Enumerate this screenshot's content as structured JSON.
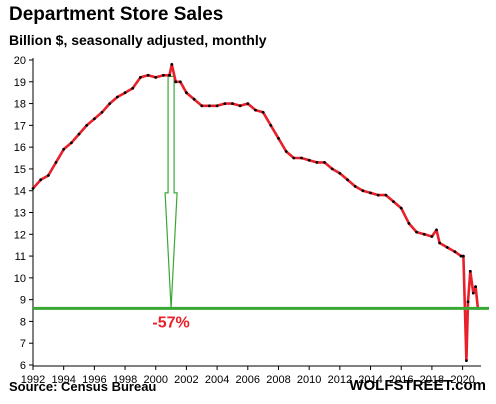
{
  "chart_data": {
    "type": "line",
    "title": "Department Store Sales",
    "subtitle": "Billion $, seasonally adjusted, monthly",
    "source": "Source: Census Bureau",
    "brand": "WOLFSTREET.com",
    "xlabel": "",
    "ylabel": "",
    "xlim": [
      1992,
      2021.2
    ],
    "ylim": [
      6,
      20
    ],
    "x_ticks": [
      1992,
      1994,
      1996,
      1998,
      2000,
      2002,
      2004,
      2006,
      2008,
      2010,
      2012,
      2014,
      2016,
      2018,
      2020
    ],
    "y_ticks": [
      6,
      7,
      8,
      9,
      10,
      11,
      12,
      13,
      14,
      15,
      16,
      17,
      18,
      19,
      20
    ],
    "grid": false,
    "colors": {
      "line": "#e8202a",
      "markers": "#000000",
      "reference": "#3aa835",
      "arrow": "#3aa835",
      "annotation": "#e8202a"
    },
    "series": [
      {
        "x": [
          1992.0,
          1992.5,
          1993.0,
          1993.5,
          1994.0,
          1994.5,
          1995.0,
          1995.5,
          1996.0,
          1996.5,
          1997.0,
          1997.5,
          1998.0,
          1998.5,
          1999.0,
          1999.5,
          2000.0,
          2000.5,
          2000.9,
          2001.05,
          2001.3,
          2001.6,
          2002.0,
          2002.5,
          2003.0,
          2003.5,
          2004.0,
          2004.5,
          2005.0,
          2005.5,
          2006.0,
          2006.5,
          2007.0,
          2007.5,
          2008.0,
          2008.5,
          2009.0,
          2009.5,
          2010.0,
          2010.5,
          2011.0,
          2011.5,
          2012.0,
          2012.5,
          2013.0,
          2013.5,
          2014.0,
          2014.5,
          2015.0,
          2015.5,
          2016.0,
          2016.5,
          2017.0,
          2017.5,
          2018.0,
          2018.3,
          2018.5,
          2019.0,
          2019.5,
          2019.9,
          2020.05,
          2020.25,
          2020.35,
          2020.5,
          2020.7,
          2020.85,
          2021.0
        ],
        "values": [
          14.1,
          14.5,
          14.7,
          15.3,
          15.9,
          16.2,
          16.6,
          17.0,
          17.3,
          17.6,
          18.0,
          18.3,
          18.5,
          18.7,
          19.2,
          19.3,
          19.2,
          19.3,
          19.3,
          19.8,
          19.0,
          19.0,
          18.5,
          18.2,
          17.9,
          17.9,
          17.9,
          18.0,
          18.0,
          17.9,
          18.0,
          17.7,
          17.6,
          17.0,
          16.4,
          15.8,
          15.5,
          15.5,
          15.4,
          15.3,
          15.3,
          15.0,
          14.8,
          14.5,
          14.2,
          14.0,
          13.9,
          13.8,
          13.8,
          13.5,
          13.2,
          12.5,
          12.1,
          12.0,
          11.9,
          12.2,
          11.6,
          11.4,
          11.2,
          11.0,
          11.0,
          6.2,
          8.9,
          10.3,
          9.3,
          9.6,
          8.6
        ]
      }
    ],
    "reference_line": {
      "y": 8.6
    },
    "arrow": {
      "x": 2001.0,
      "from": 19.8,
      "to": 8.6
    },
    "annotation": {
      "text": "-57%",
      "x": 2001.0,
      "y": 8.0
    }
  }
}
